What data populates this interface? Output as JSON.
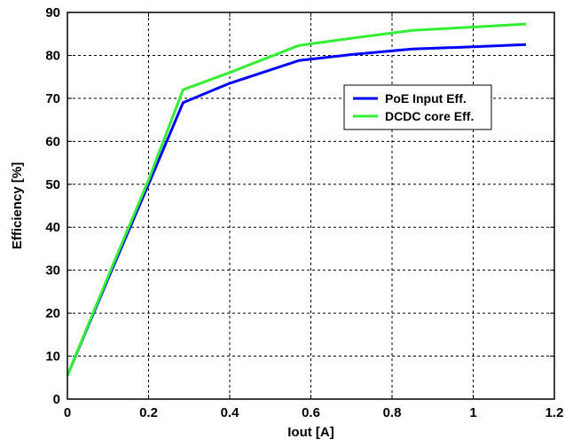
{
  "chart_data": {
    "type": "line",
    "title": "",
    "xlabel": "Iout [A]",
    "ylabel": "Efficiency [%]",
    "xlim": [
      0,
      1.2
    ],
    "ylim": [
      0,
      90
    ],
    "xticks": [
      0,
      0.2,
      0.4,
      0.6,
      0.8,
      1,
      1.2
    ],
    "xtick_labels": [
      "0",
      "0.2",
      "0.4",
      "0.6",
      "0.8",
      "1",
      "1.2"
    ],
    "yticks": [
      0,
      10,
      20,
      30,
      40,
      50,
      60,
      70,
      80,
      90
    ],
    "ytick_labels": [
      "0",
      "10",
      "20",
      "30",
      "40",
      "50",
      "60",
      "70",
      "80",
      "90"
    ],
    "grid": true,
    "legend_position": "upper-right",
    "series": [
      {
        "name": "PoE Input Eff.",
        "color": "#0000ff",
        "x": [
          0,
          0.1,
          0.2,
          0.285,
          0.4,
          0.57,
          0.7,
          0.85,
          1.0,
          1.13
        ],
        "y": [
          5.5,
          28,
          50,
          69,
          73.5,
          78.8,
          80.2,
          81.5,
          82,
          82.5
        ]
      },
      {
        "name": "DCDC core Eff.",
        "color": "#33ee33",
        "x": [
          0,
          0.1,
          0.2,
          0.285,
          0.4,
          0.57,
          0.7,
          0.85,
          1.0,
          1.13
        ],
        "y": [
          5.5,
          28.5,
          51,
          72,
          76,
          82.3,
          84,
          85.8,
          86.6,
          87.3
        ]
      }
    ]
  }
}
